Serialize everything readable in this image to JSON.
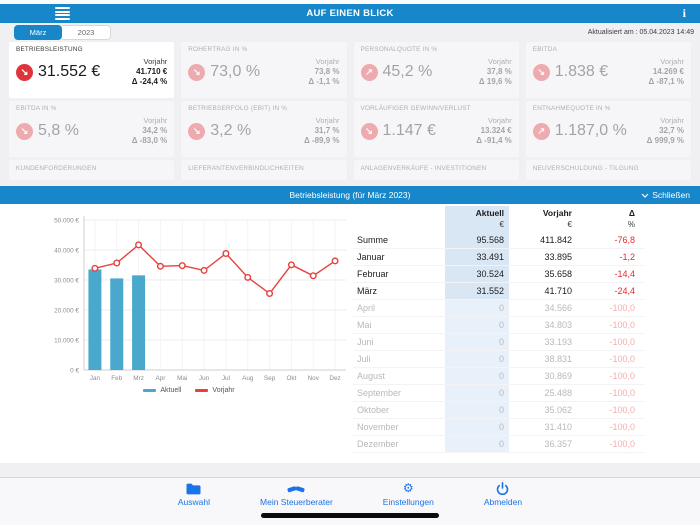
{
  "header": {
    "title": "AUF EINEN BLICK"
  },
  "toolbar": {
    "tabs": [
      "März",
      "2023"
    ],
    "updated": "Aktualisiert am : 05.04.2023 14:49"
  },
  "kpis": [
    {
      "label": "BETRIEBSLEISTUNG",
      "value": "31.552 €",
      "vorjahr_label": "Vorjahr",
      "vorjahr": "41.710 €",
      "delta": "Δ -24,4 %",
      "trend": "down",
      "selected": true
    },
    {
      "label": "ROHERTRAG IN %",
      "value": "73,0 %",
      "vorjahr_label": "Vorjahr",
      "vorjahr": "73,8 %",
      "delta": "Δ -1,1 %",
      "trend": "down",
      "selected": false
    },
    {
      "label": "PERSONALQUOTE IN %",
      "value": "45,2 %",
      "vorjahr_label": "Vorjahr",
      "vorjahr": "37,8 %",
      "delta": "Δ 19,6 %",
      "trend": "up",
      "selected": false
    },
    {
      "label": "EBITDA",
      "value": "1.838 €",
      "vorjahr_label": "Vorjahr",
      "vorjahr": "14.269 €",
      "delta": "Δ -87,1 %",
      "trend": "down",
      "selected": false
    },
    {
      "label": "EBITDA IN %",
      "value": "5,8 %",
      "vorjahr_label": "Vorjahr",
      "vorjahr": "34,2 %",
      "delta": "Δ -83,0 %",
      "trend": "down",
      "selected": false
    },
    {
      "label": "BETRIEBSERFOLG (EBIT) IN %",
      "value": "3,2 %",
      "vorjahr_label": "Vorjahr",
      "vorjahr": "31,7 %",
      "delta": "Δ -89,9 %",
      "trend": "down",
      "selected": false
    },
    {
      "label": "VORLÄUFIGER GEWINN/VERLUST",
      "value": "1.147 €",
      "vorjahr_label": "Vorjahr",
      "vorjahr": "13.324 €",
      "delta": "Δ -91,4 %",
      "trend": "down",
      "selected": false
    },
    {
      "label": "ENTNAHMEQUOTE IN %",
      "value": "1.187,0 %",
      "vorjahr_label": "Vorjahr",
      "vorjahr": "32,7 %",
      "delta": "Δ 999,9 %",
      "trend": "up",
      "selected": false
    }
  ],
  "kpis_partial": [
    "KUNDENFORDERUNGEN",
    "LIEFERANTENVERBINDLICHKEITEN",
    "ANLAGENVERKÄUFE - INVESTITIONEN",
    "NEUVERSCHULDUNG - TILGUNG"
  ],
  "section": {
    "title": "Betriebsleistung (für März 2023)",
    "close_label": "Schließen"
  },
  "chart_data": {
    "type": "bar+line",
    "categories": [
      "Jan",
      "Feb",
      "Mrz",
      "Apr",
      "Mai",
      "Jun",
      "Jul",
      "Aug",
      "Sep",
      "Okt",
      "Nov",
      "Dez"
    ],
    "series": [
      {
        "name": "Aktuell",
        "type": "bar",
        "color": "#4aa8cc",
        "values": [
          33491,
          30524,
          31552,
          0,
          0,
          0,
          0,
          0,
          0,
          0,
          0,
          0
        ]
      },
      {
        "name": "Vorjahr",
        "type": "line",
        "color": "#e8403d",
        "values": [
          33895,
          35658,
          41710,
          34566,
          34803,
          33193,
          38831,
          30869,
          25488,
          35062,
          31410,
          36357
        ]
      }
    ],
    "title": "Betriebsleistung (für März 2023)",
    "xlabel": "",
    "ylabel": "",
    "ylim": [
      0,
      50000
    ],
    "yticks": [
      "0 €",
      "10.000 €",
      "20.000 €",
      "30.000 €",
      "40.000 €",
      "50.000 €"
    ],
    "grid": true,
    "legend_position": "bottom"
  },
  "table": {
    "columns": [
      {
        "label": "Aktuell",
        "unit": "€"
      },
      {
        "label": "Vorjahr",
        "unit": "€"
      },
      {
        "label": "Δ",
        "unit": "%"
      }
    ],
    "rows": [
      {
        "label": "Summe",
        "aktuell": "95.568",
        "vorjahr": "411.842",
        "delta": "-76,8"
      },
      {
        "label": "Januar",
        "aktuell": "33.491",
        "vorjahr": "33.895",
        "delta": "-1,2"
      },
      {
        "label": "Februar",
        "aktuell": "30.524",
        "vorjahr": "35.658",
        "delta": "-14,4"
      },
      {
        "label": "März",
        "aktuell": "31.552",
        "vorjahr": "41.710",
        "delta": "-24,4"
      },
      {
        "label": "April",
        "aktuell": "0",
        "vorjahr": "34.566",
        "delta": "-100,0"
      },
      {
        "label": "Mai",
        "aktuell": "0",
        "vorjahr": "34.803",
        "delta": "-100,0"
      },
      {
        "label": "Juni",
        "aktuell": "0",
        "vorjahr": "33.193",
        "delta": "-100,0"
      },
      {
        "label": "Juli",
        "aktuell": "0",
        "vorjahr": "38.831",
        "delta": "-100,0"
      },
      {
        "label": "August",
        "aktuell": "0",
        "vorjahr": "30.869",
        "delta": "-100,0"
      },
      {
        "label": "September",
        "aktuell": "0",
        "vorjahr": "25.488",
        "delta": "-100,0"
      },
      {
        "label": "Oktober",
        "aktuell": "0",
        "vorjahr": "35.062",
        "delta": "-100,0"
      },
      {
        "label": "November",
        "aktuell": "0",
        "vorjahr": "31.410",
        "delta": "-100,0"
      },
      {
        "label": "Dezember",
        "aktuell": "0",
        "vorjahr": "36.357",
        "delta": "-100,0"
      }
    ]
  },
  "nav": {
    "items": [
      {
        "label": "Auswahl",
        "icon": "folder-icon"
      },
      {
        "label": "Mein Steuerberater",
        "icon": "handshake-icon"
      },
      {
        "label": "Einstellungen",
        "icon": "gear-icon"
      },
      {
        "label": "Abmelden",
        "icon": "power-icon"
      }
    ]
  },
  "colors": {
    "brand_blue": "#1787c9",
    "nav_blue": "#1a73e8",
    "bar_blue": "#4aa8cc",
    "line_red": "#e8403d",
    "delta_red": "#e8282d"
  }
}
